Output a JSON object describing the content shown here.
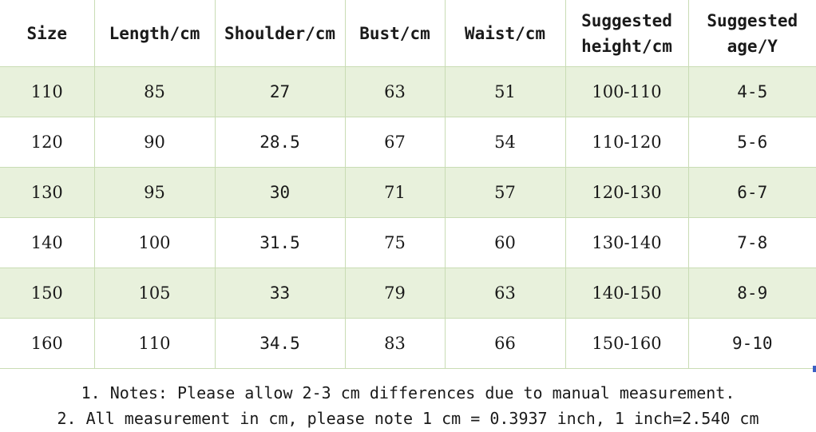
{
  "table": {
    "headers": [
      "Size",
      "Length/cm",
      "Shoulder/cm",
      "Bust/cm",
      "Waist/cm",
      [
        "Suggested",
        "height/cm"
      ],
      [
        "Suggested",
        "age/Y"
      ]
    ],
    "rows": [
      [
        "110",
        "85",
        "27",
        "63",
        "51",
        "100-110",
        "4-5"
      ],
      [
        "120",
        "90",
        "28.5",
        "67",
        "54",
        "110-120",
        "5-6"
      ],
      [
        "130",
        "95",
        "30",
        "71",
        "57",
        "120-130",
        "6-7"
      ],
      [
        "140",
        "100",
        "31.5",
        "75",
        "60",
        "130-140",
        "7-8"
      ],
      [
        "150",
        "105",
        "33",
        "79",
        "63",
        "140-150",
        "8-9"
      ],
      [
        "160",
        "110",
        "34.5",
        "83",
        "66",
        "150-160",
        "9-10"
      ]
    ]
  },
  "notes": [
    "1. Notes: Please allow 2-3 cm differences due to manual measurement.",
    "2. All measurement in cm, please note 1 cm = 0.3937 inch, 1 inch=2.540 cm"
  ],
  "colors": {
    "stripe": "#e8f1dc",
    "grid": "#c9dcb4",
    "corner_mark": "#3a5fc4"
  }
}
